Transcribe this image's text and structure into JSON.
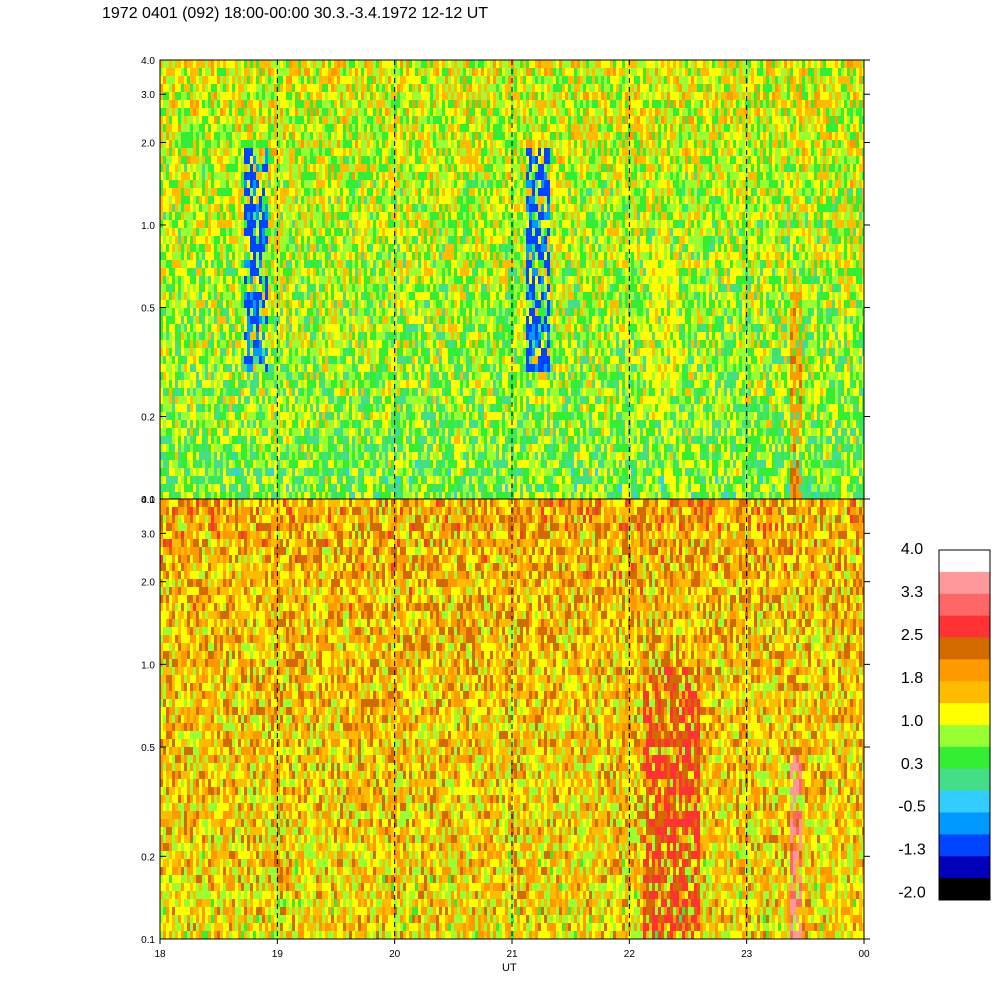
{
  "title": "1972 0401 (092) 18:00-00:00 30.3.-3.4.1972  12-12 UT",
  "chart_data": [
    {
      "type": "heatmap",
      "panel": "top",
      "x": {
        "label": "UT",
        "ticks": [
          "18",
          "19",
          "20",
          "21",
          "22",
          "23",
          "00"
        ],
        "range": [
          18,
          24
        ],
        "dashed_gridlines": [
          19,
          20,
          21,
          22,
          23
        ]
      },
      "y": {
        "scale": "log",
        "ticks": [
          "0.1",
          "0.2",
          "0.5",
          "1.0",
          "2.0",
          "3.0",
          "4.0"
        ],
        "range": [
          0.1,
          4.0
        ]
      },
      "dominant_levels": [
        "0.3",
        "1.0"
      ],
      "features": [
        {
          "x_range": [
            18.7,
            18.9
          ],
          "y_range": [
            0.3,
            2.0
          ],
          "level": "-1.3"
        },
        {
          "x_range": [
            21.1,
            21.3
          ],
          "y_range": [
            0.3,
            2.0
          ],
          "level": "-1.3"
        },
        {
          "x_range": [
            22.1,
            22.4
          ],
          "y_range": [
            0.2,
            0.9
          ],
          "level": "1.0"
        },
        {
          "x_range": [
            23.35,
            23.45
          ],
          "y_range": [
            0.1,
            0.6
          ],
          "level": "1.8"
        }
      ]
    },
    {
      "type": "heatmap",
      "panel": "bottom",
      "x": {
        "label": "UT",
        "ticks": [
          "18",
          "19",
          "20",
          "21",
          "22",
          "23",
          "00"
        ],
        "range": [
          18,
          24
        ],
        "dashed_gridlines": [
          19,
          20,
          21,
          22,
          23
        ]
      },
      "y": {
        "scale": "log",
        "ticks": [
          "0.1",
          "0.2",
          "0.5",
          "1.0",
          "2.0",
          "3.0",
          "4.0"
        ],
        "range": [
          0.1,
          4.0
        ]
      },
      "dominant_levels": [
        "1.8",
        "1.0"
      ],
      "features": [
        {
          "x_range": [
            22.1,
            22.6
          ],
          "y_range": [
            0.1,
            1.0
          ],
          "level": "2.5"
        },
        {
          "x_range": [
            23.35,
            23.45
          ],
          "y_range": [
            0.1,
            0.5
          ],
          "level": "3.3"
        }
      ]
    }
  ],
  "x_axis_label": "UT",
  "colorbar": {
    "labels": [
      "4.0",
      "3.3",
      "2.5",
      "1.8",
      "1.0",
      "0.3",
      "-0.5",
      "-1.3",
      "-2.0"
    ],
    "colors": [
      "#ffffff",
      "#ff9999",
      "#ff6666",
      "#ff3333",
      "#d26a00",
      "#ff9900",
      "#ffbb00",
      "#ffff00",
      "#99ff33",
      "#33ee33",
      "#44dd88",
      "#33ccff",
      "#0099ff",
      "#0044ff",
      "#0000bb",
      "#000000"
    ]
  }
}
